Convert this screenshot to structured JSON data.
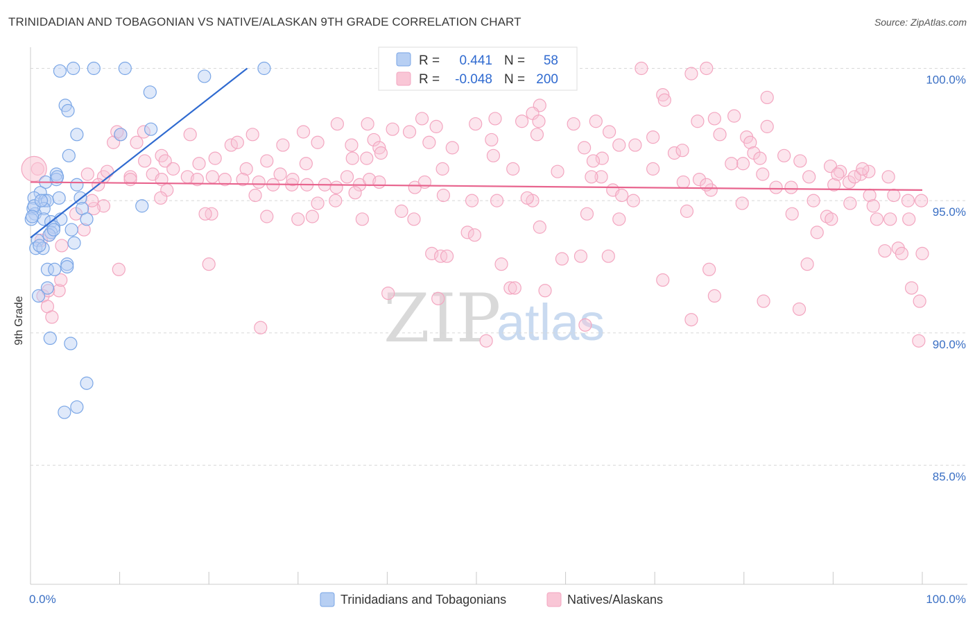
{
  "header": {
    "title": "TRINIDADIAN AND TOBAGONIAN VS NATIVE/ALASKAN 9TH GRADE CORRELATION CHART",
    "source": "Source: ZipAtlas.com"
  },
  "legend": {
    "r_label": "R =",
    "n_label": "N =",
    "series1_r": "0.441",
    "series1_n": "58",
    "series2_r": "-0.048",
    "series2_n": "200"
  },
  "watermark": {
    "zip": "ZIP",
    "atlas": "atlas"
  },
  "chart_data": {
    "type": "scatter",
    "title": "TRINIDADIAN AND TOBAGONIAN VS NATIVE/ALASKAN 9TH GRADE CORRELATION CHART",
    "xlabel": "",
    "ylabel": "9th Grade",
    "xlim": [
      0,
      100
    ],
    "ylim": [
      80.5,
      100.8
    ],
    "x_tick_labels": [
      {
        "value": 0,
        "label": "0.0%"
      },
      {
        "value": 100,
        "label": "100.0%"
      }
    ],
    "y_ticks": [
      {
        "value": 85,
        "label": "85.0%"
      },
      {
        "value": 90,
        "label": "90.0%"
      },
      {
        "value": 95,
        "label": "95.0%"
      },
      {
        "value": 100,
        "label": "100.0%"
      }
    ],
    "x_minor_ticks": [
      0,
      10,
      20,
      30,
      40,
      50,
      60,
      70,
      80,
      90,
      100
    ],
    "grid": true,
    "series": [
      {
        "name": "Trinidadians and Tobagonians",
        "color": "#7aa6e6",
        "line_color": "#2f6ad0",
        "trend": {
          "x0": 0,
          "y0": 93.6,
          "x1": 24.3,
          "y1": 100.0
        },
        "points": [
          [
            3.3,
            99.9
          ],
          [
            4.8,
            100.0
          ],
          [
            7.1,
            100.0
          ],
          [
            10.6,
            100.0
          ],
          [
            26.2,
            100.0
          ],
          [
            19.5,
            99.7
          ],
          [
            3.9,
            98.6
          ],
          [
            4.2,
            98.4
          ],
          [
            13.4,
            99.1
          ],
          [
            13.5,
            97.7
          ],
          [
            5.2,
            97.5
          ],
          [
            10.1,
            97.5
          ],
          [
            4.3,
            96.7
          ],
          [
            2.9,
            96.0
          ],
          [
            1.7,
            95.7
          ],
          [
            2.9,
            95.8
          ],
          [
            5.2,
            95.6
          ],
          [
            1.1,
            95.3
          ],
          [
            0.4,
            95.1
          ],
          [
            1.6,
            95.0
          ],
          [
            1.9,
            95.0
          ],
          [
            3.2,
            95.1
          ],
          [
            5.6,
            95.1
          ],
          [
            0.3,
            94.7
          ],
          [
            1.5,
            94.7
          ],
          [
            5.8,
            94.7
          ],
          [
            12.5,
            94.8
          ],
          [
            0.5,
            94.5
          ],
          [
            0.1,
            94.3
          ],
          [
            1.5,
            94.3
          ],
          [
            2.3,
            94.2
          ],
          [
            3.4,
            94.3
          ],
          [
            6.3,
            94.3
          ],
          [
            2.6,
            94.0
          ],
          [
            2.3,
            93.8
          ],
          [
            4.6,
            93.9
          ],
          [
            2.1,
            93.7
          ],
          [
            0.8,
            93.5
          ],
          [
            4.9,
            93.4
          ],
          [
            0.6,
            93.2
          ],
          [
            1.4,
            93.2
          ],
          [
            4.1,
            92.6
          ],
          [
            4.1,
            92.5
          ],
          [
            1.9,
            92.4
          ],
          [
            2.7,
            92.4
          ],
          [
            1.9,
            91.7
          ],
          [
            0.9,
            91.4
          ],
          [
            2.2,
            89.8
          ],
          [
            4.5,
            89.6
          ],
          [
            6.3,
            88.1
          ],
          [
            5.2,
            87.2
          ],
          [
            3.8,
            87.0
          ],
          [
            0.4,
            94.8
          ],
          [
            2.6,
            93.9
          ],
          [
            1.2,
            95.0
          ],
          [
            0.2,
            94.4
          ],
          [
            3.0,
            95.9
          ],
          [
            1.0,
            93.3
          ]
        ]
      },
      {
        "name": "Natives/Alaskans",
        "color": "#f3a6c0",
        "line_color": "#e8648e",
        "trend": {
          "x0": 0,
          "y0": 95.7,
          "x1": 100,
          "y1": 95.4
        },
        "points": [
          [
            60.1,
            100.0
          ],
          [
            68.5,
            100.0
          ],
          [
            75.8,
            100.0
          ],
          [
            74.1,
            99.8
          ],
          [
            70.9,
            99.0
          ],
          [
            71.1,
            98.8
          ],
          [
            82.6,
            98.9
          ],
          [
            57.1,
            98.6
          ],
          [
            56.3,
            98.3
          ],
          [
            78.9,
            98.2
          ],
          [
            76.7,
            98.1
          ],
          [
            74.8,
            98.0
          ],
          [
            63.4,
            98.0
          ],
          [
            43.9,
            98.1
          ],
          [
            52.1,
            98.1
          ],
          [
            55.1,
            98.0
          ],
          [
            57.0,
            98.0
          ],
          [
            60.9,
            97.9
          ],
          [
            64.9,
            97.6
          ],
          [
            69.8,
            97.4
          ],
          [
            77.3,
            97.5
          ],
          [
            80.3,
            97.4
          ],
          [
            82.6,
            97.8
          ],
          [
            45.5,
            97.8
          ],
          [
            49.9,
            97.9
          ],
          [
            37.8,
            97.9
          ],
          [
            40.6,
            97.7
          ],
          [
            42.5,
            97.6
          ],
          [
            30.6,
            97.6
          ],
          [
            34.4,
            97.9
          ],
          [
            24.9,
            97.5
          ],
          [
            17.9,
            97.5
          ],
          [
            10.1,
            97.5
          ],
          [
            9.7,
            97.6
          ],
          [
            9.3,
            97.2
          ],
          [
            11.9,
            97.2
          ],
          [
            12.7,
            97.6
          ],
          [
            22.5,
            97.1
          ],
          [
            23.2,
            97.2
          ],
          [
            28.3,
            97.1
          ],
          [
            32.2,
            97.2
          ],
          [
            36.0,
            97.1
          ],
          [
            38.5,
            97.3
          ],
          [
            39.1,
            97.0
          ],
          [
            44.7,
            97.2
          ],
          [
            47.3,
            97.0
          ],
          [
            51.7,
            97.3
          ],
          [
            56.8,
            97.5
          ],
          [
            62.1,
            97.0
          ],
          [
            64.1,
            96.6
          ],
          [
            66.0,
            97.1
          ],
          [
            67.8,
            97.1
          ],
          [
            72.2,
            96.8
          ],
          [
            73.1,
            96.9
          ],
          [
            80.7,
            97.2
          ],
          [
            81.1,
            96.8
          ],
          [
            81.8,
            96.6
          ],
          [
            84.5,
            96.7
          ],
          [
            79.9,
            96.4
          ],
          [
            86.3,
            96.5
          ],
          [
            89.7,
            96.3
          ],
          [
            90.8,
            96.1
          ],
          [
            93.1,
            96.0
          ],
          [
            36.1,
            96.6
          ],
          [
            37.7,
            96.6
          ],
          [
            39.3,
            96.8
          ],
          [
            30.9,
            96.4
          ],
          [
            26.5,
            96.5
          ],
          [
            24.2,
            96.2
          ],
          [
            20.7,
            96.6
          ],
          [
            18.9,
            96.4
          ],
          [
            14.7,
            96.7
          ],
          [
            12.8,
            96.5
          ],
          [
            15.1,
            96.5
          ],
          [
            16.0,
            96.2
          ],
          [
            13.7,
            96.0
          ],
          [
            6.4,
            96.0
          ],
          [
            8.2,
            95.9
          ],
          [
            8.6,
            96.1
          ],
          [
            11.2,
            95.9
          ],
          [
            14.7,
            95.8
          ],
          [
            17.6,
            95.9
          ],
          [
            18.7,
            95.8
          ],
          [
            20.4,
            95.9
          ],
          [
            21.8,
            95.8
          ],
          [
            23.8,
            95.8
          ],
          [
            25.6,
            95.7
          ],
          [
            28.0,
            96.0
          ],
          [
            29.3,
            95.6
          ],
          [
            31.0,
            95.6
          ],
          [
            33.0,
            95.6
          ],
          [
            34.3,
            95.5
          ],
          [
            35.5,
            95.9
          ],
          [
            36.9,
            95.6
          ],
          [
            38.0,
            95.8
          ],
          [
            39.1,
            95.7
          ],
          [
            43.1,
            95.5
          ],
          [
            46.2,
            96.2
          ],
          [
            51.9,
            96.7
          ],
          [
            54.1,
            96.2
          ],
          [
            59.1,
            96.1
          ],
          [
            63.1,
            96.5
          ],
          [
            64.0,
            95.9
          ],
          [
            69.8,
            96.2
          ],
          [
            73.2,
            95.7
          ],
          [
            75.0,
            95.8
          ],
          [
            78.6,
            96.4
          ],
          [
            82.1,
            96.0
          ],
          [
            83.6,
            95.5
          ],
          [
            87.3,
            95.9
          ],
          [
            90.1,
            95.6
          ],
          [
            91.8,
            95.7
          ],
          [
            96.2,
            95.9
          ],
          [
            94.0,
            96.1
          ],
          [
            92.4,
            95.9
          ],
          [
            7.6,
            95.6
          ],
          [
            15.3,
            95.4
          ],
          [
            11.2,
            95.8
          ],
          [
            20.3,
            94.5
          ],
          [
            19.6,
            94.5
          ],
          [
            26.5,
            94.4
          ],
          [
            31.6,
            94.4
          ],
          [
            41.6,
            94.6
          ],
          [
            49.5,
            95.0
          ],
          [
            46.3,
            95.2
          ],
          [
            52.3,
            95.0
          ],
          [
            56.3,
            95.0
          ],
          [
            62.4,
            94.5
          ],
          [
            65.3,
            95.4
          ],
          [
            67.6,
            95.0
          ],
          [
            73.6,
            94.6
          ],
          [
            76.3,
            95.4
          ],
          [
            79.8,
            94.9
          ],
          [
            85.3,
            95.5
          ],
          [
            87.8,
            95.0
          ],
          [
            89.3,
            94.4
          ],
          [
            91.9,
            94.9
          ],
          [
            94.1,
            95.2
          ],
          [
            94.5,
            94.8
          ],
          [
            96.8,
            95.2
          ],
          [
            98.4,
            95.0
          ],
          [
            99.9,
            95.0
          ],
          [
            25.2,
            95.2
          ],
          [
            32.2,
            94.9
          ],
          [
            34.2,
            95.0
          ],
          [
            36.4,
            95.3
          ],
          [
            8.2,
            94.8
          ],
          [
            7.1,
            94.7
          ],
          [
            5.1,
            94.5
          ],
          [
            6.0,
            93.9
          ],
          [
            3.5,
            93.3
          ],
          [
            2.1,
            93.7
          ],
          [
            9.9,
            92.4
          ],
          [
            30.0,
            94.3
          ],
          [
            37.2,
            94.3
          ],
          [
            43.0,
            94.3
          ],
          [
            49.0,
            93.8
          ],
          [
            49.8,
            93.7
          ],
          [
            57.1,
            94.0
          ],
          [
            66.0,
            94.3
          ],
          [
            88.2,
            93.8
          ],
          [
            89.8,
            94.3
          ],
          [
            94.9,
            94.3
          ],
          [
            96.4,
            94.3
          ],
          [
            98.5,
            94.3
          ],
          [
            45.0,
            93.0
          ],
          [
            46.0,
            92.9
          ],
          [
            46.7,
            92.9
          ],
          [
            59.6,
            92.8
          ],
          [
            61.7,
            92.9
          ],
          [
            64.8,
            92.9
          ],
          [
            20.0,
            92.6
          ],
          [
            52.8,
            92.6
          ],
          [
            76.1,
            92.4
          ],
          [
            87.1,
            92.6
          ],
          [
            95.8,
            93.1
          ],
          [
            97.3,
            93.2
          ],
          [
            97.7,
            93.0
          ],
          [
            100.0,
            93.0
          ],
          [
            70.9,
            92.0
          ],
          [
            53.8,
            91.7
          ],
          [
            54.3,
            91.7
          ],
          [
            57.7,
            91.6
          ],
          [
            40.1,
            91.5
          ],
          [
            45.7,
            91.3
          ],
          [
            76.7,
            91.4
          ],
          [
            82.2,
            91.2
          ],
          [
            86.2,
            90.9
          ],
          [
            98.8,
            91.7
          ],
          [
            99.7,
            91.2
          ],
          [
            25.8,
            90.2
          ],
          [
            62.2,
            90.3
          ],
          [
            74.1,
            90.5
          ],
          [
            51.1,
            89.7
          ],
          [
            99.6,
            89.7
          ],
          [
            3.2,
            91.6
          ],
          [
            1.4,
            91.4
          ],
          [
            2.0,
            91.6
          ],
          [
            1.9,
            91.0
          ],
          [
            2.4,
            90.6
          ],
          [
            3.4,
            92.0
          ],
          [
            1.2,
            93.5
          ],
          [
            0.8,
            96.2
          ],
          [
            14.6,
            95.1
          ],
          [
            6.9,
            95.0
          ],
          [
            29.4,
            95.8
          ],
          [
            27.2,
            95.6
          ],
          [
            44.2,
            95.7
          ],
          [
            55.7,
            95.1
          ],
          [
            62.9,
            95.9
          ],
          [
            66.3,
            95.2
          ],
          [
            75.8,
            95.6
          ],
          [
            85.4,
            94.5
          ],
          [
            90.5,
            96.0
          ],
          [
            93.3,
            96.2
          ]
        ]
      }
    ]
  },
  "bottom_legend": {
    "series1_label": "Trinidadians and Tobagonians",
    "series2_label": "Natives/Alaskans"
  }
}
